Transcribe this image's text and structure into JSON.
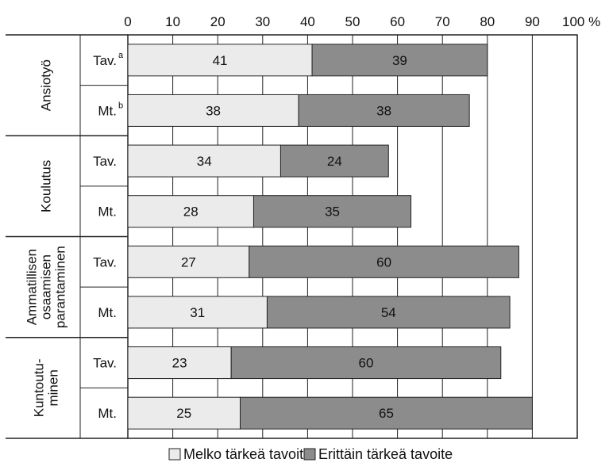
{
  "chart_data": {
    "type": "bar",
    "stacked": true,
    "orientation": "horizontal",
    "xlim": [
      0,
      100
    ],
    "x_ticks": [
      "0",
      "10",
      "20",
      "30",
      "40",
      "50",
      "60",
      "70",
      "80",
      "90",
      "100 %"
    ],
    "grid": true,
    "legend_position": "bottom",
    "groups": [
      {
        "label_lines": [
          "Ansiotyö"
        ],
        "rows": [
          {
            "label": "Tav.",
            "sup": "a",
            "values": [
              41,
              39
            ]
          },
          {
            "label": "Mt.",
            "sup": "b",
            "values": [
              38,
              38
            ]
          }
        ]
      },
      {
        "label_lines": [
          "Koulutus"
        ],
        "rows": [
          {
            "label": "Tav.",
            "sup": "",
            "values": [
              34,
              24
            ]
          },
          {
            "label": "Mt.",
            "sup": "",
            "values": [
              28,
              35
            ]
          }
        ]
      },
      {
        "label_lines": [
          "Ammatillisen",
          "osaamisen",
          "parantaminen"
        ],
        "rows": [
          {
            "label": "Tav.",
            "sup": "",
            "values": [
              27,
              60
            ]
          },
          {
            "label": "Mt.",
            "sup": "",
            "values": [
              31,
              54
            ]
          }
        ]
      },
      {
        "label_lines": [
          "Kuntoutu-",
          "minen"
        ],
        "rows": [
          {
            "label": "Tav.",
            "sup": "",
            "values": [
              23,
              60
            ]
          },
          {
            "label": "Mt.",
            "sup": "",
            "values": [
              25,
              65
            ]
          }
        ]
      }
    ],
    "series": [
      {
        "name": "Melko tärkeä tavoite",
        "color": "#ebebeb"
      },
      {
        "name": "Erittäin tärkeä tavoite",
        "color": "#8c8c8c"
      }
    ]
  }
}
